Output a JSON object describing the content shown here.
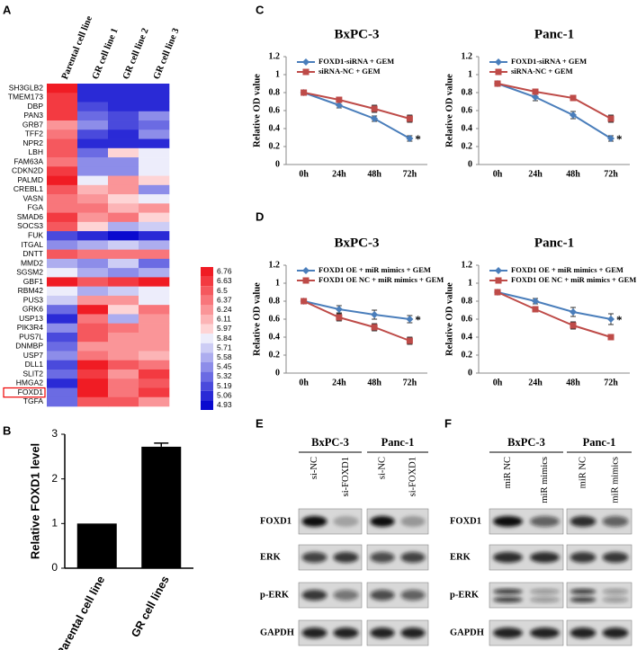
{
  "panel_labels": [
    "A",
    "B",
    "C",
    "D",
    "E",
    "F"
  ],
  "chart_data": [
    {
      "type": "heatmap",
      "columns": [
        "Parental cell line",
        "GR cell line 1",
        "GR cell line 2",
        "GR cell line 3"
      ],
      "rows": [
        "SH3GLB2",
        "TMEM173",
        "DBP",
        "PAN3",
        "GRB7",
        "TFF2",
        "NPR2",
        "LBH",
        "FAM63A",
        "CDKN2D",
        "PALMD",
        "CREBL1",
        "VASN",
        "FGA",
        "SMAD6",
        "SOCS3",
        "FUK",
        "ITGAL",
        "DNTT",
        "MMD2",
        "SGSM2",
        "GBF1",
        "RBM42",
        "PUS3",
        "GRK6",
        "USP13",
        "PIK3R4",
        "PUS7L",
        "DNMBP",
        "USP7",
        "DLL1",
        "SLIT2",
        "HMGA2",
        "FOXD1",
        "TGFA"
      ],
      "values": [
        [
          6.7,
          5.0,
          5.05,
          5.1
        ],
        [
          6.6,
          5.1,
          5.05,
          5.0
        ],
        [
          6.6,
          5.2,
          5.1,
          5.1
        ],
        [
          6.6,
          5.3,
          5.2,
          5.4
        ],
        [
          6.3,
          5.4,
          5.2,
          5.3
        ],
        [
          6.4,
          5.2,
          5.1,
          5.5
        ],
        [
          6.5,
          5.1,
          5.0,
          5.0
        ],
        [
          6.5,
          5.3,
          6.0,
          5.9
        ],
        [
          6.4,
          5.4,
          5.5,
          5.8
        ],
        [
          6.6,
          5.5,
          5.5,
          5.9
        ],
        [
          6.7,
          5.9,
          6.3,
          6.0
        ],
        [
          6.5,
          6.1,
          6.2,
          5.4
        ],
        [
          6.4,
          6.2,
          6.0,
          5.8
        ],
        [
          6.4,
          6.4,
          6.1,
          6.3
        ],
        [
          6.6,
          6.3,
          6.4,
          6.0
        ],
        [
          6.5,
          6.0,
          5.6,
          5.7
        ],
        [
          5.2,
          5.0,
          4.95,
          5.0
        ],
        [
          5.5,
          5.6,
          5.7,
          5.6
        ],
        [
          6.5,
          6.4,
          6.4,
          6.4
        ],
        [
          5.6,
          5.5,
          5.7,
          5.3
        ],
        [
          5.9,
          5.6,
          5.4,
          5.6
        ],
        [
          6.7,
          6.5,
          6.6,
          6.7
        ],
        [
          5.9,
          5.6,
          5.7,
          5.8
        ],
        [
          5.7,
          6.3,
          6.2,
          5.8
        ],
        [
          5.3,
          6.7,
          6.0,
          6.4
        ],
        [
          5.0,
          6.4,
          5.6,
          6.3
        ],
        [
          5.5,
          6.5,
          6.4,
          6.2
        ],
        [
          5.2,
          6.5,
          6.3,
          6.3
        ],
        [
          5.3,
          6.3,
          6.3,
          6.2
        ],
        [
          5.4,
          6.4,
          6.2,
          6.1
        ],
        [
          5.2,
          6.7,
          6.5,
          6.4
        ],
        [
          5.3,
          6.6,
          6.3,
          6.6
        ],
        [
          5.1,
          6.7,
          6.4,
          6.5
        ],
        [
          5.3,
          6.7,
          6.4,
          6.6
        ],
        [
          5.3,
          6.5,
          6.5,
          6.3
        ]
      ],
      "scale_ticks": [
        6.76,
        6.63,
        6.5,
        6.37,
        6.24,
        6.11,
        5.97,
        5.84,
        5.71,
        5.58,
        5.45,
        5.32,
        5.19,
        5.06,
        4.93
      ],
      "scale_colors": [
        "#f01c24",
        "#f33a41",
        "#f5585e",
        "#f8767b",
        "#fa9598",
        "#fcb4b6",
        "#fed4d5",
        "#ededfb",
        "#cdcdf5",
        "#adadef",
        "#8d8de9",
        "#6b6be3",
        "#4a4adc",
        "#2a2ad6",
        "#0a0acf"
      ]
    },
    {
      "type": "bar",
      "categories": [
        "Parental cell line",
        "GR cell lines"
      ],
      "values": [
        1,
        2.72
      ],
      "errors": [
        null,
        0.08
      ],
      "color": "#000000",
      "ylabel": "Relative FOXD1 level",
      "ylim": [
        0,
        3
      ],
      "yticks": [
        0,
        1,
        2,
        3
      ]
    },
    {
      "type": "line",
      "title": "BxPC-3",
      "ylabel": "Relative OD value",
      "categories": [
        "0h",
        "24h",
        "48h",
        "72h"
      ],
      "ylim": [
        0,
        1.2
      ],
      "yticks": [
        0,
        0.2,
        0.4,
        0.6,
        0.8,
        1,
        1.2
      ],
      "legend": "upper left",
      "annotation": "*",
      "series": [
        {
          "name": "FOXD1-siRNA + GEM",
          "color": "#4a7ebb",
          "marker": "diamond",
          "values": [
            0.8,
            0.66,
            0.51,
            0.29
          ],
          "errors": [
            0.01,
            0.03,
            0.03,
            0.03
          ]
        },
        {
          "name": "siRNA-NC + GEM",
          "color": "#be4b48",
          "marker": "square",
          "values": [
            0.8,
            0.72,
            0.62,
            0.51
          ],
          "errors": [
            0.01,
            0.03,
            0.04,
            0.04
          ]
        }
      ]
    },
    {
      "type": "line",
      "title": "Panc-1",
      "ylabel": "Relative OD value",
      "categories": [
        "0h",
        "24h",
        "48h",
        "72h"
      ],
      "ylim": [
        0,
        1.2
      ],
      "yticks": [
        0,
        0.2,
        0.4,
        0.6,
        0.8,
        1,
        1.2
      ],
      "legend": "upper left",
      "annotation": "*",
      "series": [
        {
          "name": "FOXD1-siRNA + GEM",
          "color": "#4a7ebb",
          "marker": "diamond",
          "values": [
            0.9,
            0.75,
            0.55,
            0.29
          ],
          "errors": [
            0.01,
            0.04,
            0.04,
            0.03
          ]
        },
        {
          "name": "siRNA-NC + GEM",
          "color": "#be4b48",
          "marker": "square",
          "values": [
            0.9,
            0.81,
            0.74,
            0.51
          ],
          "errors": [
            0.01,
            0.03,
            0.03,
            0.04
          ]
        }
      ]
    },
    {
      "type": "line",
      "title": "BxPC-3",
      "ylabel": "Relative OD value",
      "categories": [
        "0h",
        "24h",
        "48h",
        "72h"
      ],
      "ylim": [
        0,
        1.2
      ],
      "yticks": [
        0,
        0.2,
        0.4,
        0.6,
        0.8,
        1,
        1.2
      ],
      "legend": "upper left",
      "annotation": "*",
      "series": [
        {
          "name": "FOXD1 OE + miR mimics + GEM",
          "color": "#4a7ebb",
          "marker": "diamond",
          "values": [
            0.8,
            0.71,
            0.65,
            0.6
          ],
          "errors": [
            0.01,
            0.04,
            0.05,
            0.04
          ]
        },
        {
          "name": "FOXD1 OE NC + miR mimics + GEM",
          "color": "#be4b48",
          "marker": "square",
          "values": [
            0.8,
            0.62,
            0.51,
            0.36
          ],
          "errors": [
            0.01,
            0.04,
            0.04,
            0.04
          ]
        }
      ]
    },
    {
      "type": "line",
      "title": "Panc-1",
      "ylabel": "Relative OD value",
      "categories": [
        "0h",
        "24h",
        "48h",
        "72h"
      ],
      "ylim": [
        0,
        1.2
      ],
      "yticks": [
        0,
        0.2,
        0.4,
        0.6,
        0.8,
        1,
        1.2
      ],
      "legend": "upper left",
      "annotation": "*",
      "series": [
        {
          "name": "FOXD1 OE + miR mimics + GEM",
          "color": "#4a7ebb",
          "marker": "diamond",
          "values": [
            0.9,
            0.8,
            0.68,
            0.6
          ],
          "errors": [
            0.01,
            0.03,
            0.05,
            0.06
          ]
        },
        {
          "name": "FOXD1 OE NC + miR mimics + GEM",
          "color": "#be4b48",
          "marker": "square",
          "values": [
            0.9,
            0.71,
            0.53,
            0.4
          ],
          "errors": [
            0.01,
            0.03,
            0.04,
            0.03
          ]
        }
      ]
    }
  ],
  "blots": {
    "E": {
      "groups": [
        {
          "name": "BxPC-3",
          "lanes": [
            "si-NC",
            "si-FOXD1"
          ]
        },
        {
          "name": "Panc-1",
          "lanes": [
            "si-NC",
            "si-FOXD1"
          ]
        }
      ],
      "proteins": [
        "FOXD1",
        "ERK",
        "p-ERK",
        "GAPDH"
      ]
    },
    "F": {
      "groups": [
        {
          "name": "BxPC-3",
          "lanes": [
            "miR NC",
            "miR mimics"
          ]
        },
        {
          "name": "Panc-1",
          "lanes": [
            "miR NC",
            "miR mimics"
          ]
        }
      ],
      "proteins": [
        "FOXD1",
        "ERK",
        "p-ERK",
        "GAPDH"
      ]
    }
  }
}
